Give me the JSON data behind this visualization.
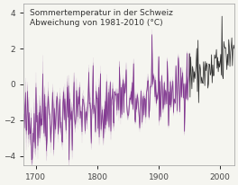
{
  "title_line1": "Sommertemperatur in der Schweiz",
  "title_line2": "Abweichung von 1981-2010 (°C)",
  "year_start": 1680,
  "year_end": 2023,
  "ylim": [
    -4.5,
    4.5
  ],
  "yticks": [
    -4,
    -2,
    0,
    2,
    4
  ],
  "xticks": [
    1700,
    1800,
    1900,
    2000
  ],
  "background_color": "#f5f5f0",
  "line_color_old": "#7B2D8B",
  "line_color_new": "#1a1a1a",
  "transition_year": 1950,
  "title_fontsize": 6.5,
  "tick_fontsize": 6.5,
  "linewidth": 0.55
}
